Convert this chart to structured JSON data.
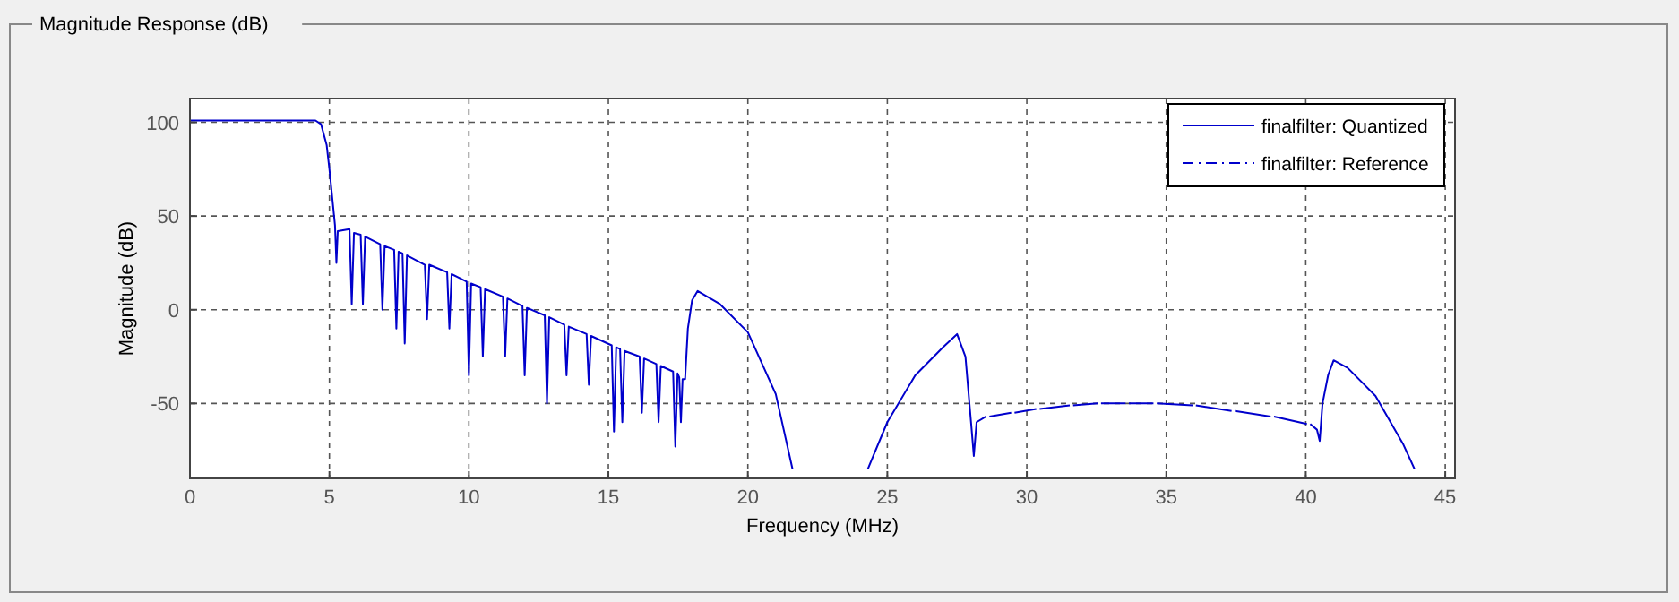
{
  "chart_data": {
    "type": "line",
    "title": "Magnitude Response (dB)",
    "xlabel": "Frequency (MHz)",
    "ylabel": "Magnitude (dB)",
    "x": [
      0,
      4.5,
      4.7,
      4.9,
      5.0,
      5.1,
      5.2,
      5.25,
      5.3,
      5.72,
      5.8,
      5.88,
      6.12,
      6.2,
      6.28,
      6.82,
      6.9,
      6.98,
      7.32,
      7.4,
      7.48,
      7.62,
      7.7,
      7.78,
      8.42,
      8.5,
      8.58,
      9.22,
      9.3,
      9.38,
      9.92,
      10.0,
      10.08,
      10.42,
      10.5,
      10.58,
      11.22,
      11.3,
      11.38,
      11.92,
      12.0,
      12.08,
      12.72,
      12.8,
      12.88,
      13.42,
      13.5,
      13.58,
      14.22,
      14.3,
      14.38,
      15.12,
      15.2,
      15.28,
      15.42,
      15.5,
      15.58,
      16.12,
      16.2,
      16.28,
      16.72,
      16.8,
      16.88,
      17.32,
      17.4,
      17.48,
      17.54,
      17.6,
      17.66,
      17.75,
      17.85,
      18.0,
      18.2,
      19,
      20,
      21,
      21.6,
      23,
      24.3,
      25,
      26,
      27,
      27.5,
      27.8,
      28.0,
      28.1,
      28.2,
      28.54,
      28.6,
      28.66,
      29.44,
      29.5,
      29.56,
      30.34,
      30.4,
      30.46,
      31.54,
      31.6,
      31.66,
      32.54,
      32.6,
      32.66,
      33.54,
      33.6,
      33.66,
      34.54,
      34.6,
      34.66,
      35.94,
      36.0,
      36.06,
      37.34,
      37.4,
      37.46,
      38.74,
      38.8,
      38.86,
      40.04,
      40.1,
      40.16,
      40.4,
      40.5,
      40.6,
      40.8,
      41.0,
      41.5,
      42.5,
      43.5,
      43.9
    ],
    "series": [
      {
        "name": "finalfilter: Quantized",
        "color": "#0000cc",
        "line_style": "solid",
        "values": [
          101,
          101,
          99,
          88,
          75,
          60,
          45,
          25,
          42,
          43,
          3,
          41,
          40,
          3,
          39,
          35,
          0,
          34,
          32,
          -10,
          31,
          30,
          -18,
          29,
          24,
          -5,
          24,
          20,
          -10,
          19,
          15,
          -35,
          14,
          12,
          -25,
          11,
          7,
          -25,
          6,
          2,
          -35,
          1,
          -3,
          -50,
          -4,
          -8,
          -35,
          -9,
          -13,
          -40,
          -14,
          -19,
          -65,
          -20,
          -21,
          -60,
          -22,
          -25,
          -55,
          -26,
          -29,
          -60,
          -30,
          -33,
          -73,
          -34,
          -36,
          -60,
          -37,
          -37,
          -10,
          5,
          10,
          3,
          -12,
          -45,
          -85,
          null,
          -85,
          -60,
          -35,
          -20,
          -13,
          -25,
          -60,
          -78,
          -60,
          -57,
          null,
          -57,
          -55,
          null,
          -55,
          -53,
          null,
          -53,
          -51,
          null,
          -51,
          -50,
          null,
          -50,
          -50,
          null,
          -50,
          -50,
          null,
          -50,
          -51,
          null,
          -51,
          -54,
          null,
          -54,
          -57,
          null,
          -57,
          -61,
          null,
          -61,
          -64,
          -70,
          -50,
          -35,
          -27,
          -31,
          -46,
          -72,
          -85
        ]
      },
      {
        "name": "finalfilter: Reference",
        "color": "#0000cc",
        "line_style": "dashed",
        "values": [
          null,
          null,
          null,
          null,
          null,
          null,
          null,
          null,
          null,
          null,
          null,
          null,
          null,
          null,
          null,
          null,
          null,
          null,
          null,
          null,
          null,
          null,
          null,
          null,
          null,
          null,
          null,
          null,
          null,
          null,
          null,
          null,
          null,
          null,
          null,
          null,
          null,
          null,
          null,
          null,
          null,
          null,
          null,
          null,
          null,
          null,
          null,
          null,
          null,
          null,
          null,
          null,
          null,
          null,
          null,
          null,
          null,
          null,
          null,
          null,
          null,
          null,
          null,
          null,
          null,
          null,
          null,
          null,
          null,
          null,
          null,
          null,
          null,
          null,
          null,
          null,
          null,
          null,
          null,
          null,
          null,
          null,
          null,
          null,
          null,
          null,
          null,
          null,
          null,
          null,
          null,
          null,
          null,
          null,
          null,
          null,
          null,
          null,
          null,
          null,
          null,
          null,
          null,
          null,
          null,
          null,
          null,
          null,
          null,
          null,
          null,
          null,
          null,
          null,
          null,
          null,
          null,
          null,
          null,
          null,
          null,
          null,
          null,
          null,
          null,
          null,
          null,
          null,
          null
        ]
      }
    ],
    "xlim": [
      0,
      45.35
    ],
    "xticks": [
      0,
      5,
      10,
      15,
      20,
      25,
      30,
      35,
      40,
      45
    ],
    "ylim": [
      -90,
      112.7
    ],
    "yticks": [
      -50,
      0,
      50,
      100
    ],
    "grid": true,
    "legend": "top right"
  }
}
